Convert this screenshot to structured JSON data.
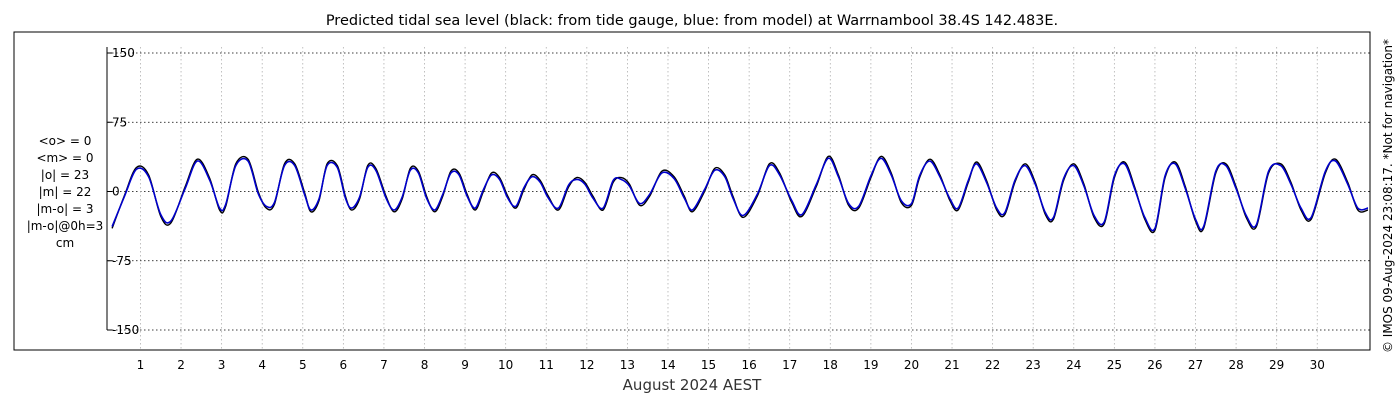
{
  "chart_data": {
    "type": "line",
    "title": "Predicted tidal sea level (black: from tide gauge, blue: from model) at Warrnambool 38.4S 142.483E.",
    "xlabel": "August 2024 AEST",
    "ylabel": "",
    "x_ticks": [
      "1",
      "2",
      "3",
      "4",
      "5",
      "6",
      "7",
      "8",
      "9",
      "10",
      "11",
      "12",
      "13",
      "14",
      "15",
      "16",
      "17",
      "18",
      "19",
      "20",
      "21",
      "22",
      "23",
      "24",
      "25",
      "26",
      "27",
      "28",
      "29",
      "30"
    ],
    "y_ticks": [
      "150",
      "75",
      "0",
      "-75",
      "-150"
    ],
    "y_tick_values": [
      150,
      75,
      0,
      -75,
      -150
    ],
    "ylim": [
      -150,
      150
    ],
    "xlim_days": [
      0.2,
      31.3
    ],
    "y_units": "cm",
    "grid": true,
    "stats": [
      "<o> = 0",
      "<m> = 0",
      "|o| = 23",
      "|m| = 22",
      "|m-o| = 3",
      "|m-o|@0h=3",
      "cm"
    ],
    "credit": "© IMOS 09-Aug-2024 23:08:17. *Not for navigation*",
    "series": [
      {
        "name": "tide gauge",
        "color": "#000000",
        "points_cm": [
          [
            0.3,
            -40
          ],
          [
            0.6,
            -5
          ],
          [
            0.9,
            26
          ],
          [
            1.2,
            18
          ],
          [
            1.5,
            -27
          ],
          [
            1.75,
            -34
          ],
          [
            2.1,
            5
          ],
          [
            2.4,
            35
          ],
          [
            2.7,
            15
          ],
          [
            2.95,
            -20
          ],
          [
            3.1,
            -16
          ],
          [
            3.35,
            30
          ],
          [
            3.65,
            35
          ],
          [
            3.9,
            0
          ],
          [
            4.1,
            -18
          ],
          [
            4.3,
            -14
          ],
          [
            4.55,
            30
          ],
          [
            4.8,
            30
          ],
          [
            5.05,
            -2
          ],
          [
            5.2,
            -22
          ],
          [
            5.4,
            -10
          ],
          [
            5.6,
            30
          ],
          [
            5.85,
            28
          ],
          [
            6.05,
            -5
          ],
          [
            6.2,
            -20
          ],
          [
            6.4,
            -8
          ],
          [
            6.6,
            28
          ],
          [
            6.8,
            25
          ],
          [
            7.05,
            -5
          ],
          [
            7.25,
            -22
          ],
          [
            7.45,
            -8
          ],
          [
            7.65,
            25
          ],
          [
            7.85,
            22
          ],
          [
            8.05,
            -5
          ],
          [
            8.25,
            -22
          ],
          [
            8.45,
            -5
          ],
          [
            8.65,
            22
          ],
          [
            8.85,
            20
          ],
          [
            9.05,
            -3
          ],
          [
            9.25,
            -20
          ],
          [
            9.45,
            0
          ],
          [
            9.65,
            20
          ],
          [
            9.85,
            15
          ],
          [
            10.05,
            -5
          ],
          [
            10.25,
            -18
          ],
          [
            10.45,
            2
          ],
          [
            10.65,
            18
          ],
          [
            10.85,
            12
          ],
          [
            11.05,
            -5
          ],
          [
            11.3,
            -20
          ],
          [
            11.55,
            5
          ],
          [
            11.75,
            15
          ],
          [
            11.95,
            10
          ],
          [
            12.15,
            -5
          ],
          [
            12.4,
            -20
          ],
          [
            12.65,
            10
          ],
          [
            12.85,
            15
          ],
          [
            13.05,
            8
          ],
          [
            13.3,
            -15
          ],
          [
            13.55,
            -5
          ],
          [
            13.85,
            22
          ],
          [
            14.15,
            16
          ],
          [
            14.4,
            -5
          ],
          [
            14.6,
            -22
          ],
          [
            14.9,
            0
          ],
          [
            15.15,
            25
          ],
          [
            15.4,
            18
          ],
          [
            15.6,
            -5
          ],
          [
            15.85,
            -28
          ],
          [
            16.2,
            -5
          ],
          [
            16.5,
            30
          ],
          [
            16.75,
            20
          ],
          [
            17.05,
            -12
          ],
          [
            17.3,
            -27
          ],
          [
            17.65,
            5
          ],
          [
            17.95,
            38
          ],
          [
            18.2,
            18
          ],
          [
            18.45,
            -15
          ],
          [
            18.7,
            -18
          ],
          [
            19.0,
            15
          ],
          [
            19.25,
            38
          ],
          [
            19.5,
            20
          ],
          [
            19.75,
            -12
          ],
          [
            20.0,
            -15
          ],
          [
            20.2,
            15
          ],
          [
            20.45,
            35
          ],
          [
            20.7,
            18
          ],
          [
            20.95,
            -10
          ],
          [
            21.15,
            -20
          ],
          [
            21.4,
            10
          ],
          [
            21.6,
            32
          ],
          [
            21.85,
            12
          ],
          [
            22.1,
            -20
          ],
          [
            22.3,
            -25
          ],
          [
            22.55,
            10
          ],
          [
            22.8,
            30
          ],
          [
            23.05,
            10
          ],
          [
            23.3,
            -25
          ],
          [
            23.5,
            -30
          ],
          [
            23.75,
            12
          ],
          [
            24.0,
            30
          ],
          [
            24.25,
            8
          ],
          [
            24.5,
            -28
          ],
          [
            24.75,
            -35
          ],
          [
            25.0,
            15
          ],
          [
            25.25,
            32
          ],
          [
            25.5,
            5
          ],
          [
            25.75,
            -30
          ],
          [
            26.0,
            -42
          ],
          [
            26.25,
            15
          ],
          [
            26.5,
            32
          ],
          [
            26.75,
            5
          ],
          [
            27.0,
            -32
          ],
          [
            27.2,
            -40
          ],
          [
            27.5,
            20
          ],
          [
            27.75,
            30
          ],
          [
            28.0,
            5
          ],
          [
            28.25,
            -28
          ],
          [
            28.5,
            -38
          ],
          [
            28.8,
            20
          ],
          [
            29.1,
            30
          ],
          [
            29.35,
            10
          ],
          [
            29.6,
            -20
          ],
          [
            29.85,
            -30
          ],
          [
            30.2,
            20
          ],
          [
            30.45,
            35
          ],
          [
            30.75,
            10
          ],
          [
            31.0,
            -20
          ],
          [
            31.25,
            -20
          ]
        ]
      },
      {
        "name": "model",
        "color": "#0000cc",
        "points_cm": [
          [
            0.3,
            -38
          ],
          [
            0.6,
            -6
          ],
          [
            0.9,
            24
          ],
          [
            1.2,
            16
          ],
          [
            1.5,
            -25
          ],
          [
            1.75,
            -32
          ],
          [
            2.1,
            3
          ],
          [
            2.4,
            33
          ],
          [
            2.7,
            13
          ],
          [
            2.95,
            -18
          ],
          [
            3.1,
            -14
          ],
          [
            3.35,
            28
          ],
          [
            3.65,
            33
          ],
          [
            3.9,
            -2
          ],
          [
            4.1,
            -16
          ],
          [
            4.3,
            -12
          ],
          [
            4.55,
            28
          ],
          [
            4.8,
            28
          ],
          [
            5.05,
            -4
          ],
          [
            5.2,
            -20
          ],
          [
            5.4,
            -8
          ],
          [
            5.6,
            28
          ],
          [
            5.85,
            26
          ],
          [
            6.05,
            -7
          ],
          [
            6.2,
            -18
          ],
          [
            6.4,
            -6
          ],
          [
            6.6,
            26
          ],
          [
            6.8,
            23
          ],
          [
            7.05,
            -7
          ],
          [
            7.25,
            -20
          ],
          [
            7.45,
            -6
          ],
          [
            7.65,
            23
          ],
          [
            7.85,
            20
          ],
          [
            8.05,
            -7
          ],
          [
            8.25,
            -20
          ],
          [
            8.45,
            -3
          ],
          [
            8.65,
            20
          ],
          [
            8.85,
            18
          ],
          [
            9.05,
            -5
          ],
          [
            9.25,
            -18
          ],
          [
            9.45,
            2
          ],
          [
            9.65,
            18
          ],
          [
            9.85,
            13
          ],
          [
            10.05,
            -7
          ],
          [
            10.25,
            -16
          ],
          [
            10.45,
            4
          ],
          [
            10.65,
            16
          ],
          [
            10.85,
            10
          ],
          [
            11.05,
            -7
          ],
          [
            11.3,
            -18
          ],
          [
            11.55,
            7
          ],
          [
            11.75,
            13
          ],
          [
            11.95,
            8
          ],
          [
            12.15,
            -7
          ],
          [
            12.4,
            -18
          ],
          [
            12.65,
            12
          ],
          [
            12.85,
            13
          ],
          [
            13.05,
            6
          ],
          [
            13.3,
            -13
          ],
          [
            13.55,
            -3
          ],
          [
            13.85,
            20
          ],
          [
            14.15,
            14
          ],
          [
            14.4,
            -7
          ],
          [
            14.6,
            -20
          ],
          [
            14.9,
            2
          ],
          [
            15.15,
            23
          ],
          [
            15.4,
            16
          ],
          [
            15.6,
            -7
          ],
          [
            15.85,
            -26
          ],
          [
            16.2,
            -3
          ],
          [
            16.5,
            28
          ],
          [
            16.75,
            18
          ],
          [
            17.05,
            -10
          ],
          [
            17.3,
            -25
          ],
          [
            17.65,
            7
          ],
          [
            17.95,
            36
          ],
          [
            18.2,
            16
          ],
          [
            18.45,
            -13
          ],
          [
            18.7,
            -16
          ],
          [
            19.0,
            17
          ],
          [
            19.25,
            36
          ],
          [
            19.5,
            18
          ],
          [
            19.75,
            -10
          ],
          [
            20.0,
            -13
          ],
          [
            20.2,
            17
          ],
          [
            20.45,
            33
          ],
          [
            20.7,
            16
          ],
          [
            20.95,
            -8
          ],
          [
            21.15,
            -18
          ],
          [
            21.4,
            12
          ],
          [
            21.6,
            30
          ],
          [
            21.85,
            10
          ],
          [
            22.1,
            -18
          ],
          [
            22.3,
            -23
          ],
          [
            22.55,
            12
          ],
          [
            22.8,
            28
          ],
          [
            23.05,
            8
          ],
          [
            23.3,
            -23
          ],
          [
            23.5,
            -28
          ],
          [
            23.75,
            14
          ],
          [
            24.0,
            28
          ],
          [
            24.25,
            6
          ],
          [
            24.5,
            -26
          ],
          [
            24.75,
            -33
          ],
          [
            25.0,
            17
          ],
          [
            25.25,
            30
          ],
          [
            25.5,
            3
          ],
          [
            25.75,
            -28
          ],
          [
            26.0,
            -40
          ],
          [
            26.25,
            17
          ],
          [
            26.5,
            30
          ],
          [
            26.75,
            3
          ],
          [
            27.0,
            -30
          ],
          [
            27.2,
            -38
          ],
          [
            27.5,
            22
          ],
          [
            27.75,
            28
          ],
          [
            28.0,
            3
          ],
          [
            28.25,
            -26
          ],
          [
            28.5,
            -36
          ],
          [
            28.8,
            22
          ],
          [
            29.1,
            28
          ],
          [
            29.35,
            8
          ],
          [
            29.6,
            -18
          ],
          [
            29.85,
            -28
          ],
          [
            30.2,
            22
          ],
          [
            30.45,
            33
          ],
          [
            30.75,
            8
          ],
          [
            31.0,
            -18
          ],
          [
            31.25,
            -18
          ]
        ]
      }
    ]
  }
}
